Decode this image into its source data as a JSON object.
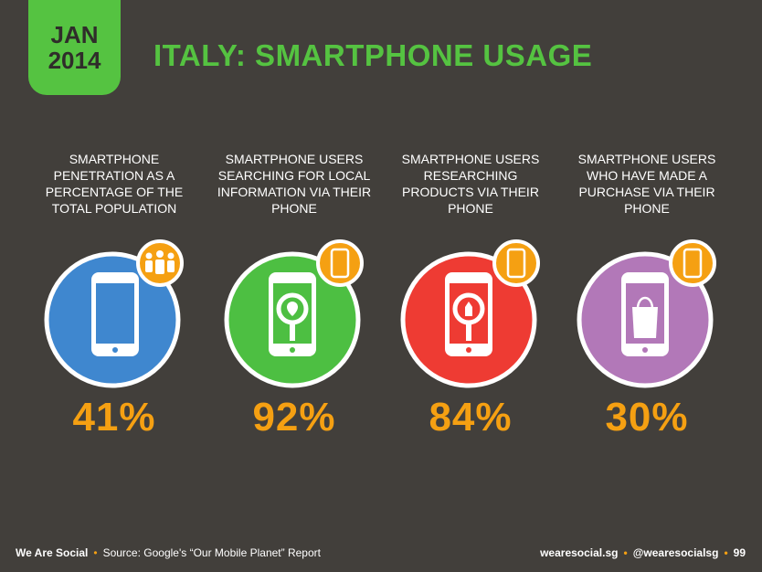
{
  "header": {
    "date_line1": "JAN",
    "date_line2": "2014",
    "title": "ITALY: SMARTPHONE USAGE"
  },
  "stats": [
    {
      "label": "SMARTPHONE PENETRATION AS A PERCENTAGE OF THE TOTAL POPULATION",
      "value": "41%",
      "color": "#3f87cf",
      "icon": "people-icon"
    },
    {
      "label": "SMARTPHONE USERS SEARCHING FOR LOCAL INFORMATION VIA THEIR PHONE",
      "value": "92%",
      "color": "#4dbf42",
      "icon": "location-search-icon"
    },
    {
      "label": "SMARTPHONE USERS RESEARCHING PRODUCTS VIA THEIR PHONE",
      "value": "84%",
      "color": "#ee3b33",
      "icon": "product-search-icon"
    },
    {
      "label": "SMARTPHONE USERS WHO HAVE MADE A PURCHASE VIA THEIR PHONE",
      "value": "30%",
      "color": "#b278b8",
      "icon": "shopping-bag-icon"
    }
  ],
  "footer": {
    "brand": "We Are Social",
    "source": "Source: Google's “Our Mobile Planet” Report",
    "site": "wearesocial.sg",
    "handle": "@wearesocialsg",
    "page": "99"
  },
  "colors": {
    "accent_green": "#55c341",
    "value_orange": "#f5a012",
    "background": "#423f3b"
  }
}
